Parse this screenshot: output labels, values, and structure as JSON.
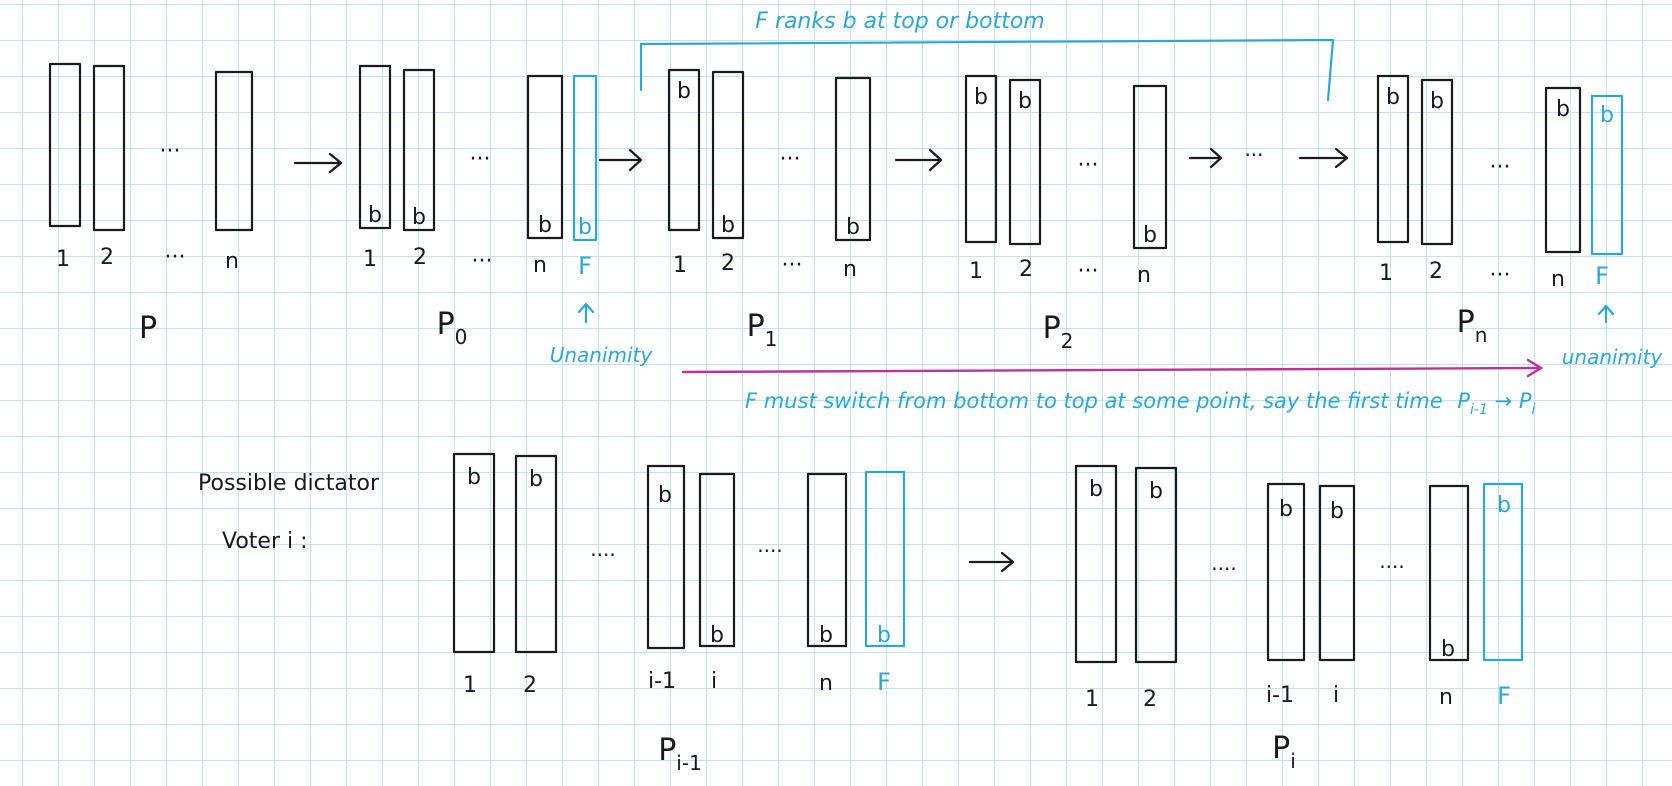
{
  "colors": {
    "ink": "#1a1a1a",
    "accent_blue": "#2aa7d6",
    "arrow_magenta": "#c0309a",
    "grid": "#bfe3f3"
  },
  "top_row": {
    "bracket_label": "F ranks b at top or bottom",
    "sequence_ellipsis": "···",
    "profiles": [
      {
        "id": "P",
        "label": "P",
        "voter_labels": [
          "1",
          "2",
          "n"
        ],
        "ellipsis": "···",
        "b_positions": []
      },
      {
        "id": "P0",
        "label": "P",
        "subscript": "0",
        "voter_labels": [
          "1",
          "2",
          "n",
          "F"
        ],
        "ellipsis": "···",
        "b_positions": [
          "bottom",
          "bottom",
          "bottom",
          "bottom"
        ],
        "note_label": "Unanimity"
      },
      {
        "id": "P1",
        "label": "P",
        "subscript": "1",
        "voter_labels": [
          "1",
          "2",
          "n"
        ],
        "ellipsis": "···",
        "b_positions": [
          "top",
          "bottom",
          "bottom"
        ]
      },
      {
        "id": "P2",
        "label": "P",
        "subscript": "2",
        "voter_labels": [
          "1",
          "2",
          "n"
        ],
        "ellipsis": "···",
        "b_positions": [
          "top",
          "top",
          "bottom"
        ]
      },
      {
        "id": "Pn",
        "label": "P",
        "subscript": "n",
        "voter_labels": [
          "1",
          "2",
          "n",
          "F"
        ],
        "ellipsis": "···",
        "b_positions": [
          "top",
          "top",
          "top",
          "top"
        ],
        "note_label": "unanimity"
      }
    ],
    "switch_note": "F must switch from bottom to top at some point, say the first time",
    "switch_note_math": {
      "from": "P",
      "from_sub": "i-1",
      "to": "P",
      "to_sub": "i"
    }
  },
  "bottom_row": {
    "caption_line1": "Possible dictator",
    "caption_line2": "Voter i :",
    "profiles": [
      {
        "id": "Pi-1",
        "label": "P",
        "subscript": "i-1",
        "voter_labels": [
          "1",
          "2",
          "i-1",
          "i",
          "n",
          "F"
        ],
        "ellipsis": "····",
        "b_positions": [
          "top",
          "top",
          "top",
          "bottom",
          "bottom",
          "bottom"
        ]
      },
      {
        "id": "Pi",
        "label": "P",
        "subscript": "i",
        "voter_labels": [
          "1",
          "2",
          "i-1",
          "i",
          "n",
          "F"
        ],
        "ellipsis": "····",
        "b_positions": [
          "top",
          "top",
          "top",
          "top",
          "bottom",
          "top"
        ]
      }
    ]
  },
  "ballot_letter": "b"
}
